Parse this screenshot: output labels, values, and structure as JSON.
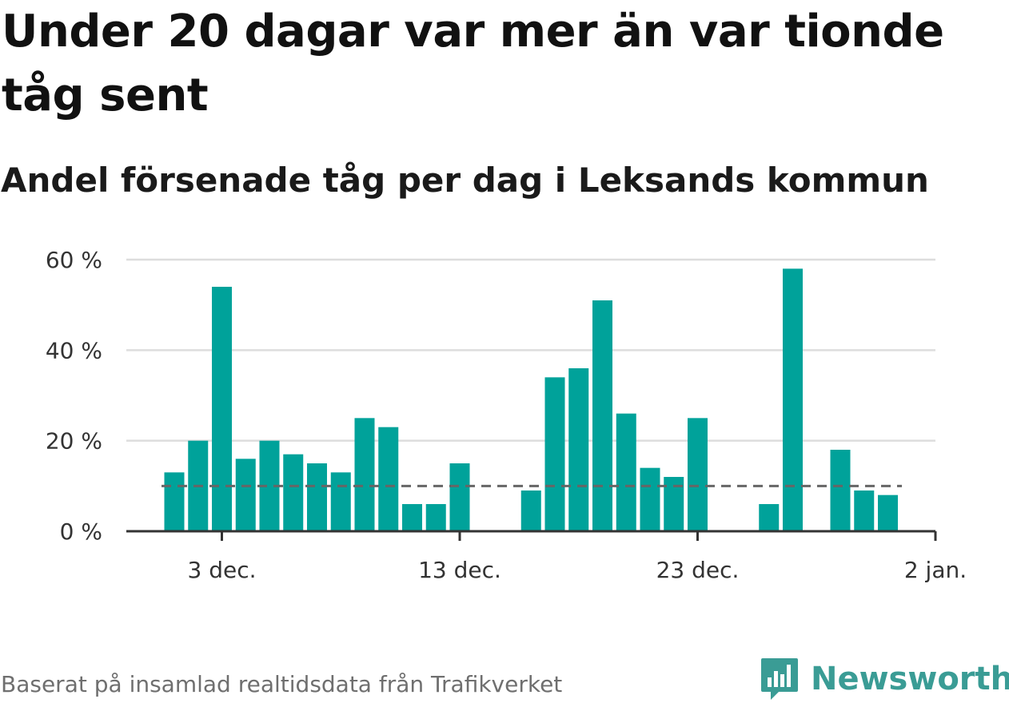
{
  "title": "Under 20 dagar var mer än var tionde tåg sent",
  "subtitle": "Andel försenade tåg per dag i Leksands kommun",
  "footer": {
    "source": "Baserat på insamlad realtidsdata från Trafikverket",
    "brand": "Newsworthy",
    "brand_icon": "bar-chart-speech-bubble-icon"
  },
  "colors": {
    "bar": "#00a29a",
    "threshold": "#666666",
    "grid": "#dddddd",
    "axis": "#333333",
    "brand": "#3a9c95"
  },
  "chart_data": {
    "type": "bar",
    "x_start_day": 1,
    "x": [
      "1 dec.",
      "2 dec.",
      "3 dec.",
      "4 dec.",
      "5 dec.",
      "6 dec.",
      "7 dec.",
      "8 dec.",
      "9 dec.",
      "10 dec.",
      "11 dec.",
      "12 dec.",
      "13 dec.",
      "14 dec.",
      "15 dec.",
      "16 dec.",
      "17 dec.",
      "18 dec.",
      "19 dec.",
      "20 dec.",
      "21 dec.",
      "22 dec.",
      "23 dec.",
      "24 dec.",
      "25 dec.",
      "26 dec.",
      "27 dec.",
      "28 dec.",
      "29 dec.",
      "30 dec.",
      "31 dec."
    ],
    "values": [
      13,
      20,
      54,
      16,
      20,
      17,
      15,
      13,
      25,
      23,
      6,
      6,
      15,
      0,
      0,
      9,
      34,
      36,
      51,
      26,
      14,
      12,
      25,
      0,
      0,
      6,
      58,
      0,
      18,
      9,
      8
    ],
    "threshold": 10,
    "ylim": [
      0,
      60
    ],
    "yticks": [
      0,
      20,
      40,
      60
    ],
    "ytick_labels": [
      "0 %",
      "20 %",
      "40 %",
      "60 %"
    ],
    "xticks": [
      {
        "day": 3,
        "label": "3 dec."
      },
      {
        "day": 13,
        "label": "13 dec."
      },
      {
        "day": 23,
        "label": "23 dec."
      },
      {
        "day": 33,
        "label": "2 jan."
      }
    ],
    "grid": true,
    "xlabel": "",
    "ylabel": ""
  }
}
